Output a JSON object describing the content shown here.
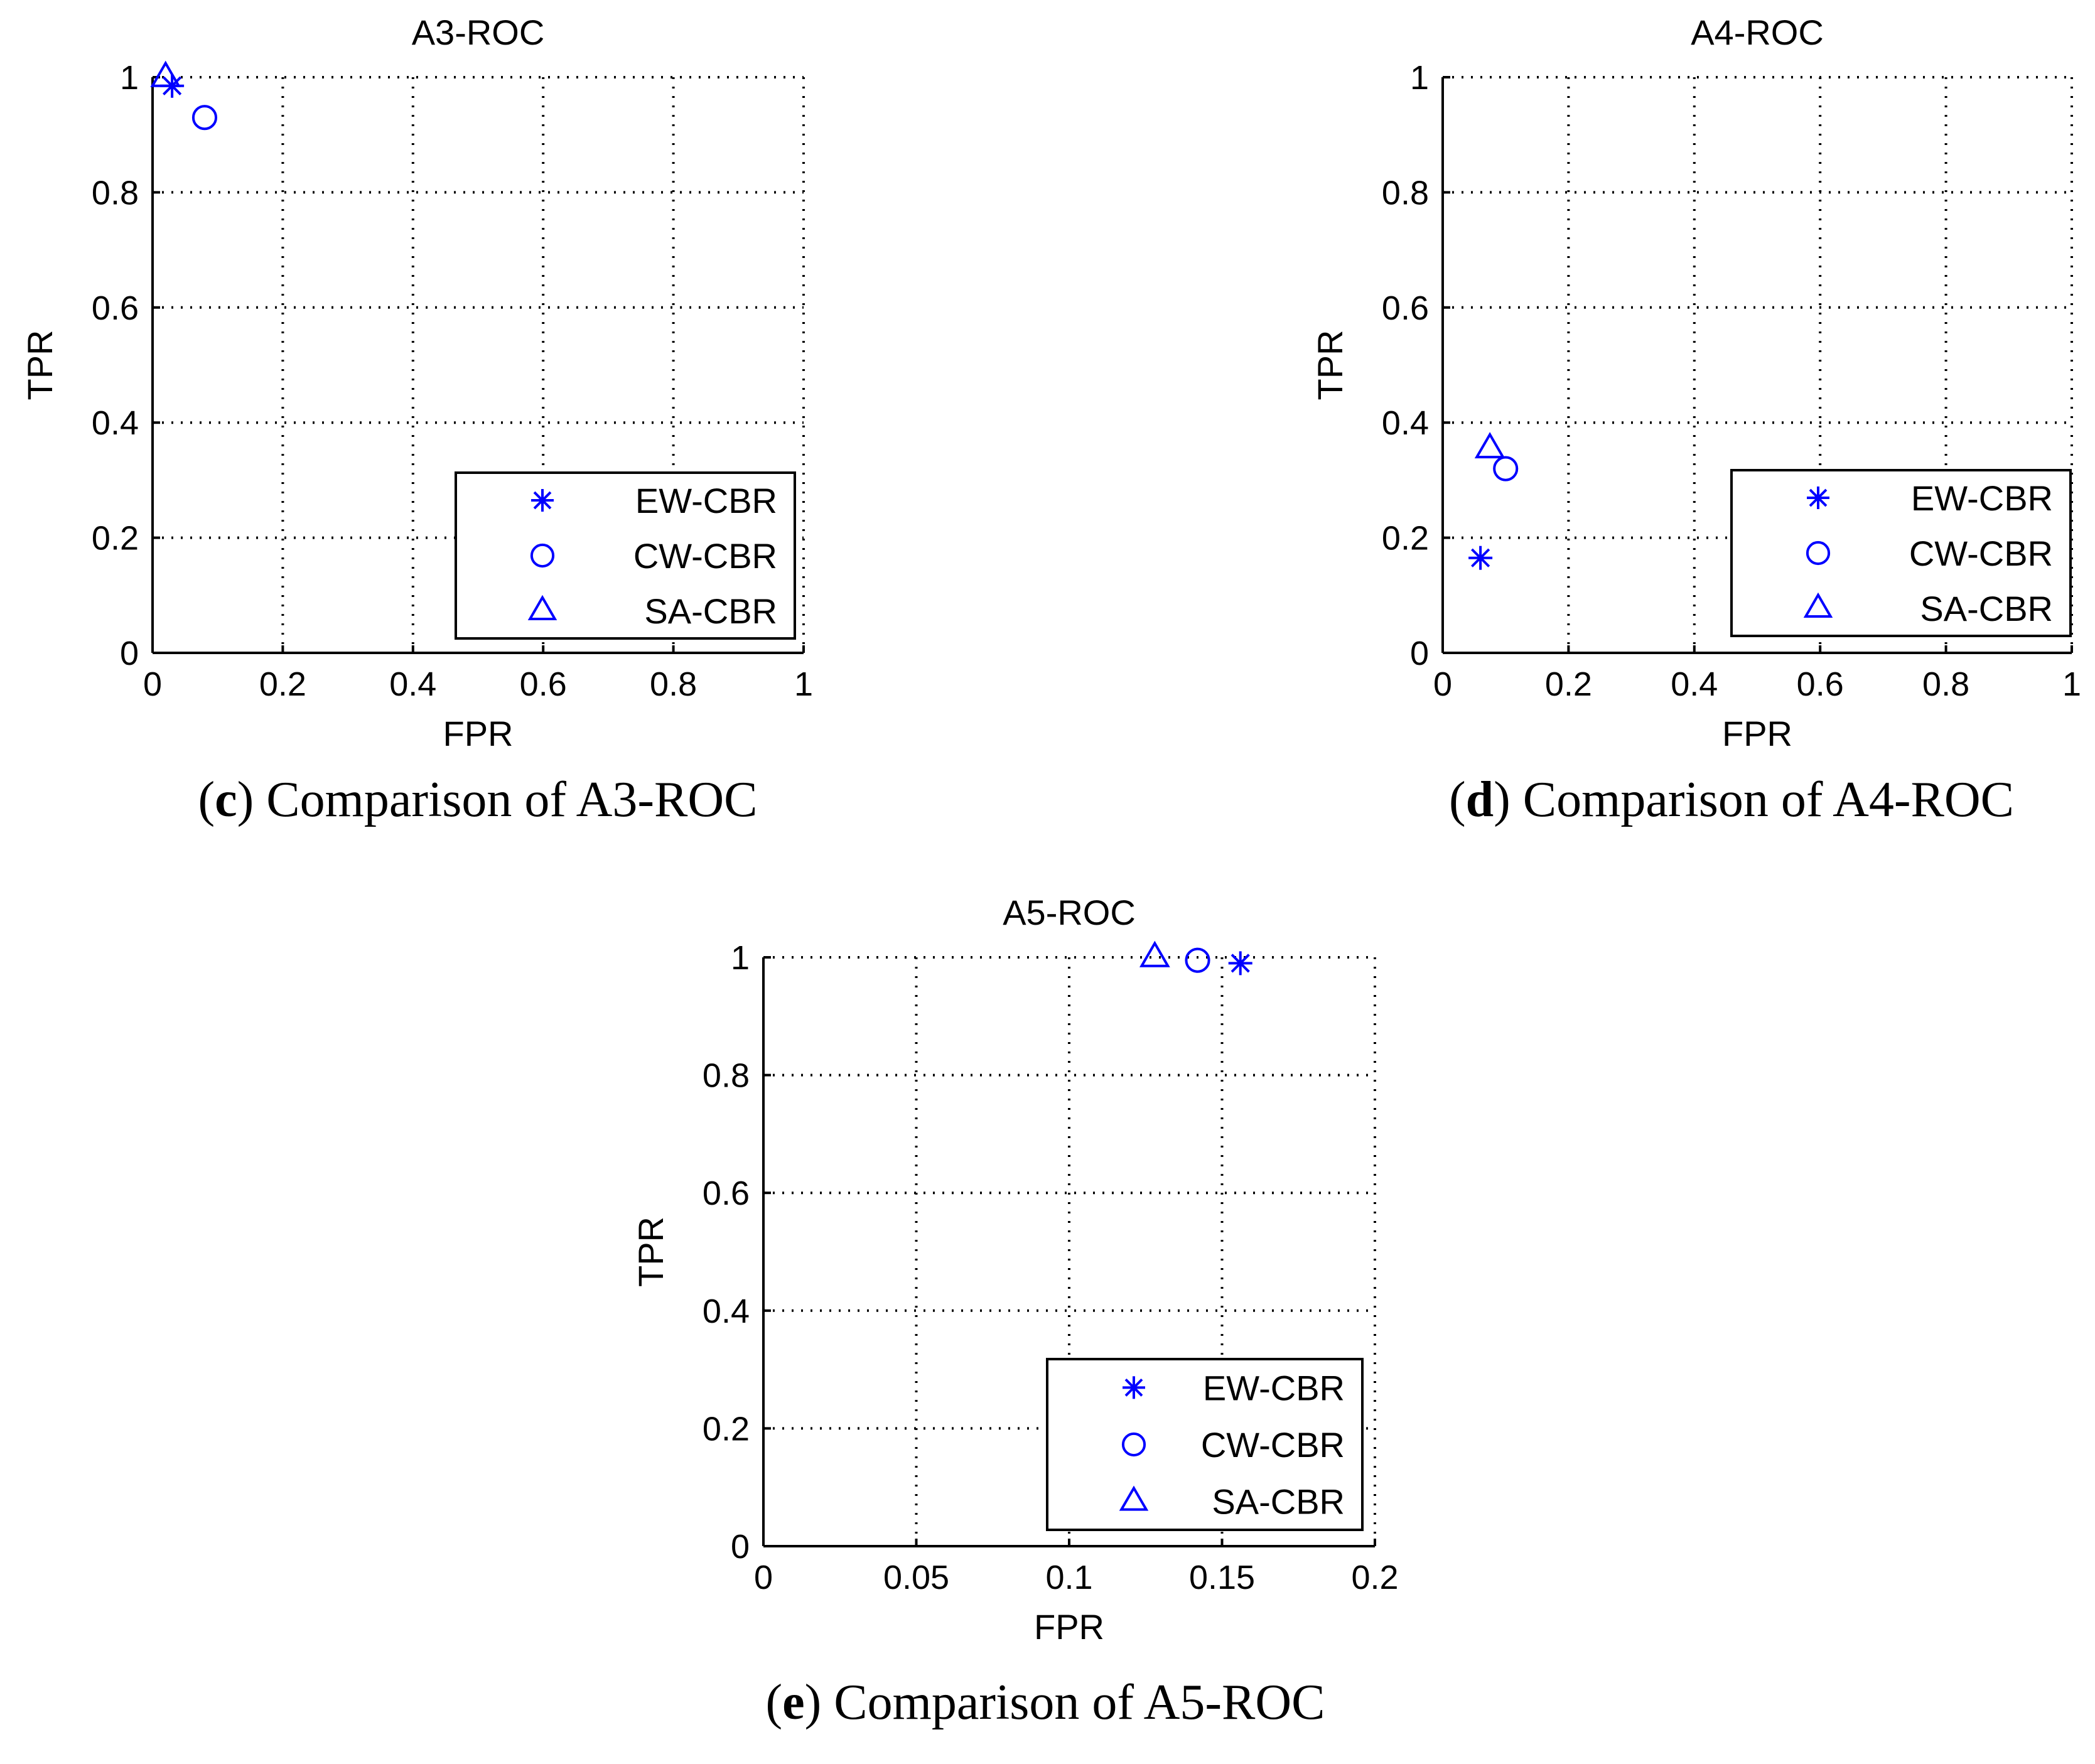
{
  "chart_data": [
    {
      "type": "scatter",
      "title": "A3-ROC",
      "xlabel": "FPR",
      "ylabel": "TPR",
      "xlim": [
        0,
        1
      ],
      "ylim": [
        0,
        1
      ],
      "xticks": [
        "0",
        "0.2",
        "0.4",
        "0.6",
        "0.8",
        "1"
      ],
      "yticks": [
        "0",
        "0.2",
        "0.4",
        "0.6",
        "0.8",
        "1"
      ],
      "xtick_values": [
        0,
        0.2,
        0.4,
        0.6,
        0.8,
        1
      ],
      "ytick_values": [
        0,
        0.2,
        0.4,
        0.6,
        0.8,
        1
      ],
      "grid": true,
      "legend_position": "bottom-right",
      "caption": {
        "letter": "c",
        "text": "Comparison of A3-ROC"
      },
      "series": [
        {
          "name": "EW-CBR",
          "marker": "star",
          "x": 0.03,
          "y": 0.985
        },
        {
          "name": "CW-CBR",
          "marker": "circle",
          "x": 0.08,
          "y": 0.93
        },
        {
          "name": "SA-CBR",
          "marker": "triangle",
          "x": 0.02,
          "y": 1.0
        }
      ]
    },
    {
      "type": "scatter",
      "title": "A4-ROC",
      "xlabel": "FPR",
      "ylabel": "TPR",
      "xlim": [
        0,
        1
      ],
      "ylim": [
        0,
        1
      ],
      "xticks": [
        "0",
        "0.2",
        "0.4",
        "0.6",
        "0.8",
        "1"
      ],
      "yticks": [
        "0",
        "0.2",
        "0.4",
        "0.6",
        "0.8",
        "1"
      ],
      "xtick_values": [
        0,
        0.2,
        0.4,
        0.6,
        0.8,
        1
      ],
      "ytick_values": [
        0,
        0.2,
        0.4,
        0.6,
        0.8,
        1
      ],
      "grid": true,
      "legend_position": "bottom-right",
      "caption": {
        "letter": "d",
        "text": "Comparison of A4-ROC"
      },
      "series": [
        {
          "name": "EW-CBR",
          "marker": "star",
          "x": 0.06,
          "y": 0.165
        },
        {
          "name": "CW-CBR",
          "marker": "circle",
          "x": 0.1,
          "y": 0.32
        },
        {
          "name": "SA-CBR",
          "marker": "triangle",
          "x": 0.075,
          "y": 0.355
        }
      ]
    },
    {
      "type": "scatter",
      "title": "A5-ROC",
      "xlabel": "FPR",
      "ylabel": "TPR",
      "xlim": [
        0,
        0.2
      ],
      "ylim": [
        0,
        1
      ],
      "xticks": [
        "0",
        "0.05",
        "0.1",
        "0.15",
        "0.2"
      ],
      "yticks": [
        "0",
        "0.2",
        "0.4",
        "0.6",
        "0.8",
        "1"
      ],
      "xtick_values": [
        0,
        0.05,
        0.1,
        0.15,
        0.2
      ],
      "ytick_values": [
        0,
        0.2,
        0.4,
        0.6,
        0.8,
        1
      ],
      "grid": true,
      "legend_position": "bottom-right",
      "caption": {
        "letter": "e",
        "text": "Comparison of A5-ROC"
      },
      "series": [
        {
          "name": "EW-CBR",
          "marker": "star",
          "x": 0.156,
          "y": 0.99
        },
        {
          "name": "CW-CBR",
          "marker": "circle",
          "x": 0.142,
          "y": 0.995
        },
        {
          "name": "SA-CBR",
          "marker": "triangle",
          "x": 0.128,
          "y": 1.0
        }
      ]
    }
  ],
  "colors": {
    "marker": "#0000ff",
    "axis": "#000000",
    "background": "#ffffff"
  }
}
